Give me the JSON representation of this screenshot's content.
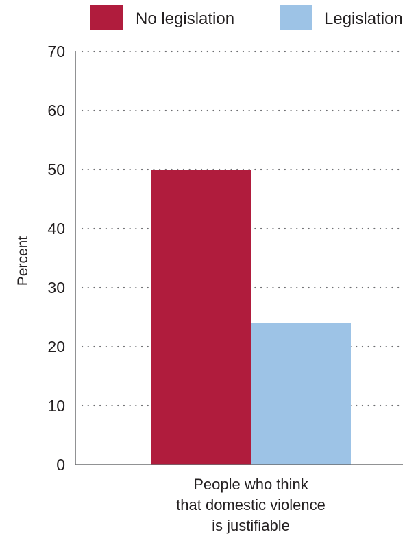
{
  "chart_data": {
    "type": "bar",
    "categories": [
      "People who think that domestic violence is justifiable"
    ],
    "category_lines": [
      "People who think",
      "that domestic violence",
      "is justifiable"
    ],
    "series": [
      {
        "name": "No legislation",
        "values": [
          50
        ],
        "color": "#b01c3d"
      },
      {
        "name": "Legislation",
        "values": [
          24
        ],
        "color": "#9dc3e6"
      }
    ],
    "ylabel": "Percent",
    "xlabel": "",
    "ylim": [
      0,
      70
    ],
    "yticks": [
      0,
      10,
      20,
      30,
      40,
      50,
      60,
      70
    ],
    "grid": true,
    "legend_position": "top"
  }
}
